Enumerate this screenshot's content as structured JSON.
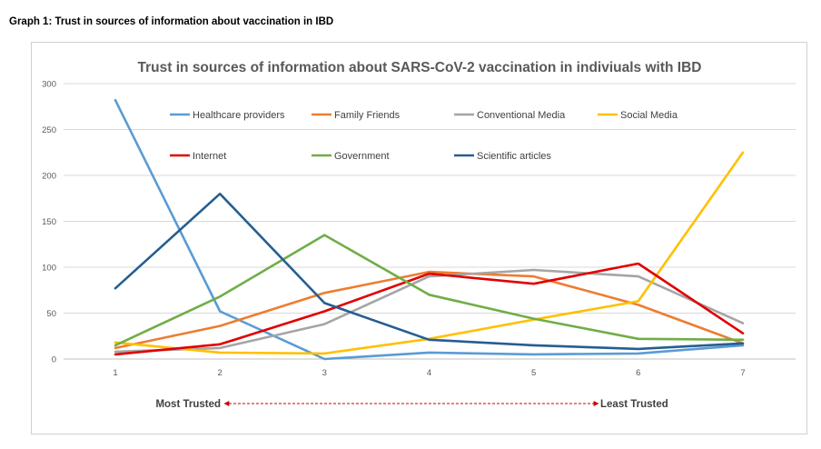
{
  "caption": "Graph 1: Trust in sources of information about vaccination in IBD",
  "chart_data": {
    "type": "line",
    "title": "Trust in sources of information about SARS-CoV-2 vaccination in indiviuals with IBD",
    "x": [
      1,
      2,
      3,
      4,
      5,
      6,
      7
    ],
    "ylim": [
      0,
      300
    ],
    "yticks": [
      0,
      50,
      100,
      150,
      200,
      250,
      300
    ],
    "grid": true,
    "legend": "top",
    "series": [
      {
        "name": "Healthcare providers",
        "color": "#5b9bd5",
        "values": [
          282,
          52,
          0,
          7,
          5,
          6,
          15
        ]
      },
      {
        "name": "Family Friends",
        "color": "#ed7d31",
        "values": [
          12,
          36,
          72,
          95,
          90,
          59,
          17
        ]
      },
      {
        "name": "Conventional Media",
        "color": "#a5a5a5",
        "values": [
          8,
          12,
          38,
          90,
          97,
          90,
          39
        ]
      },
      {
        "name": "Social Media",
        "color": "#ffc000",
        "values": [
          18,
          7,
          6,
          22,
          43,
          63,
          225
        ]
      },
      {
        "name": "Internet",
        "color": "#e00000",
        "values": [
          5,
          16,
          52,
          93,
          82,
          104,
          28
        ]
      },
      {
        "name": "Government",
        "color": "#70ad47",
        "values": [
          15,
          68,
          135,
          70,
          44,
          22,
          21
        ]
      },
      {
        "name": "Scientific articles",
        "color": "#255e91",
        "values": [
          77,
          180,
          61,
          21,
          15,
          11,
          17
        ]
      }
    ],
    "annotation_left": "Most Trusted",
    "annotation_right": "Least Trusted",
    "annotation_color": "#cc0000"
  }
}
